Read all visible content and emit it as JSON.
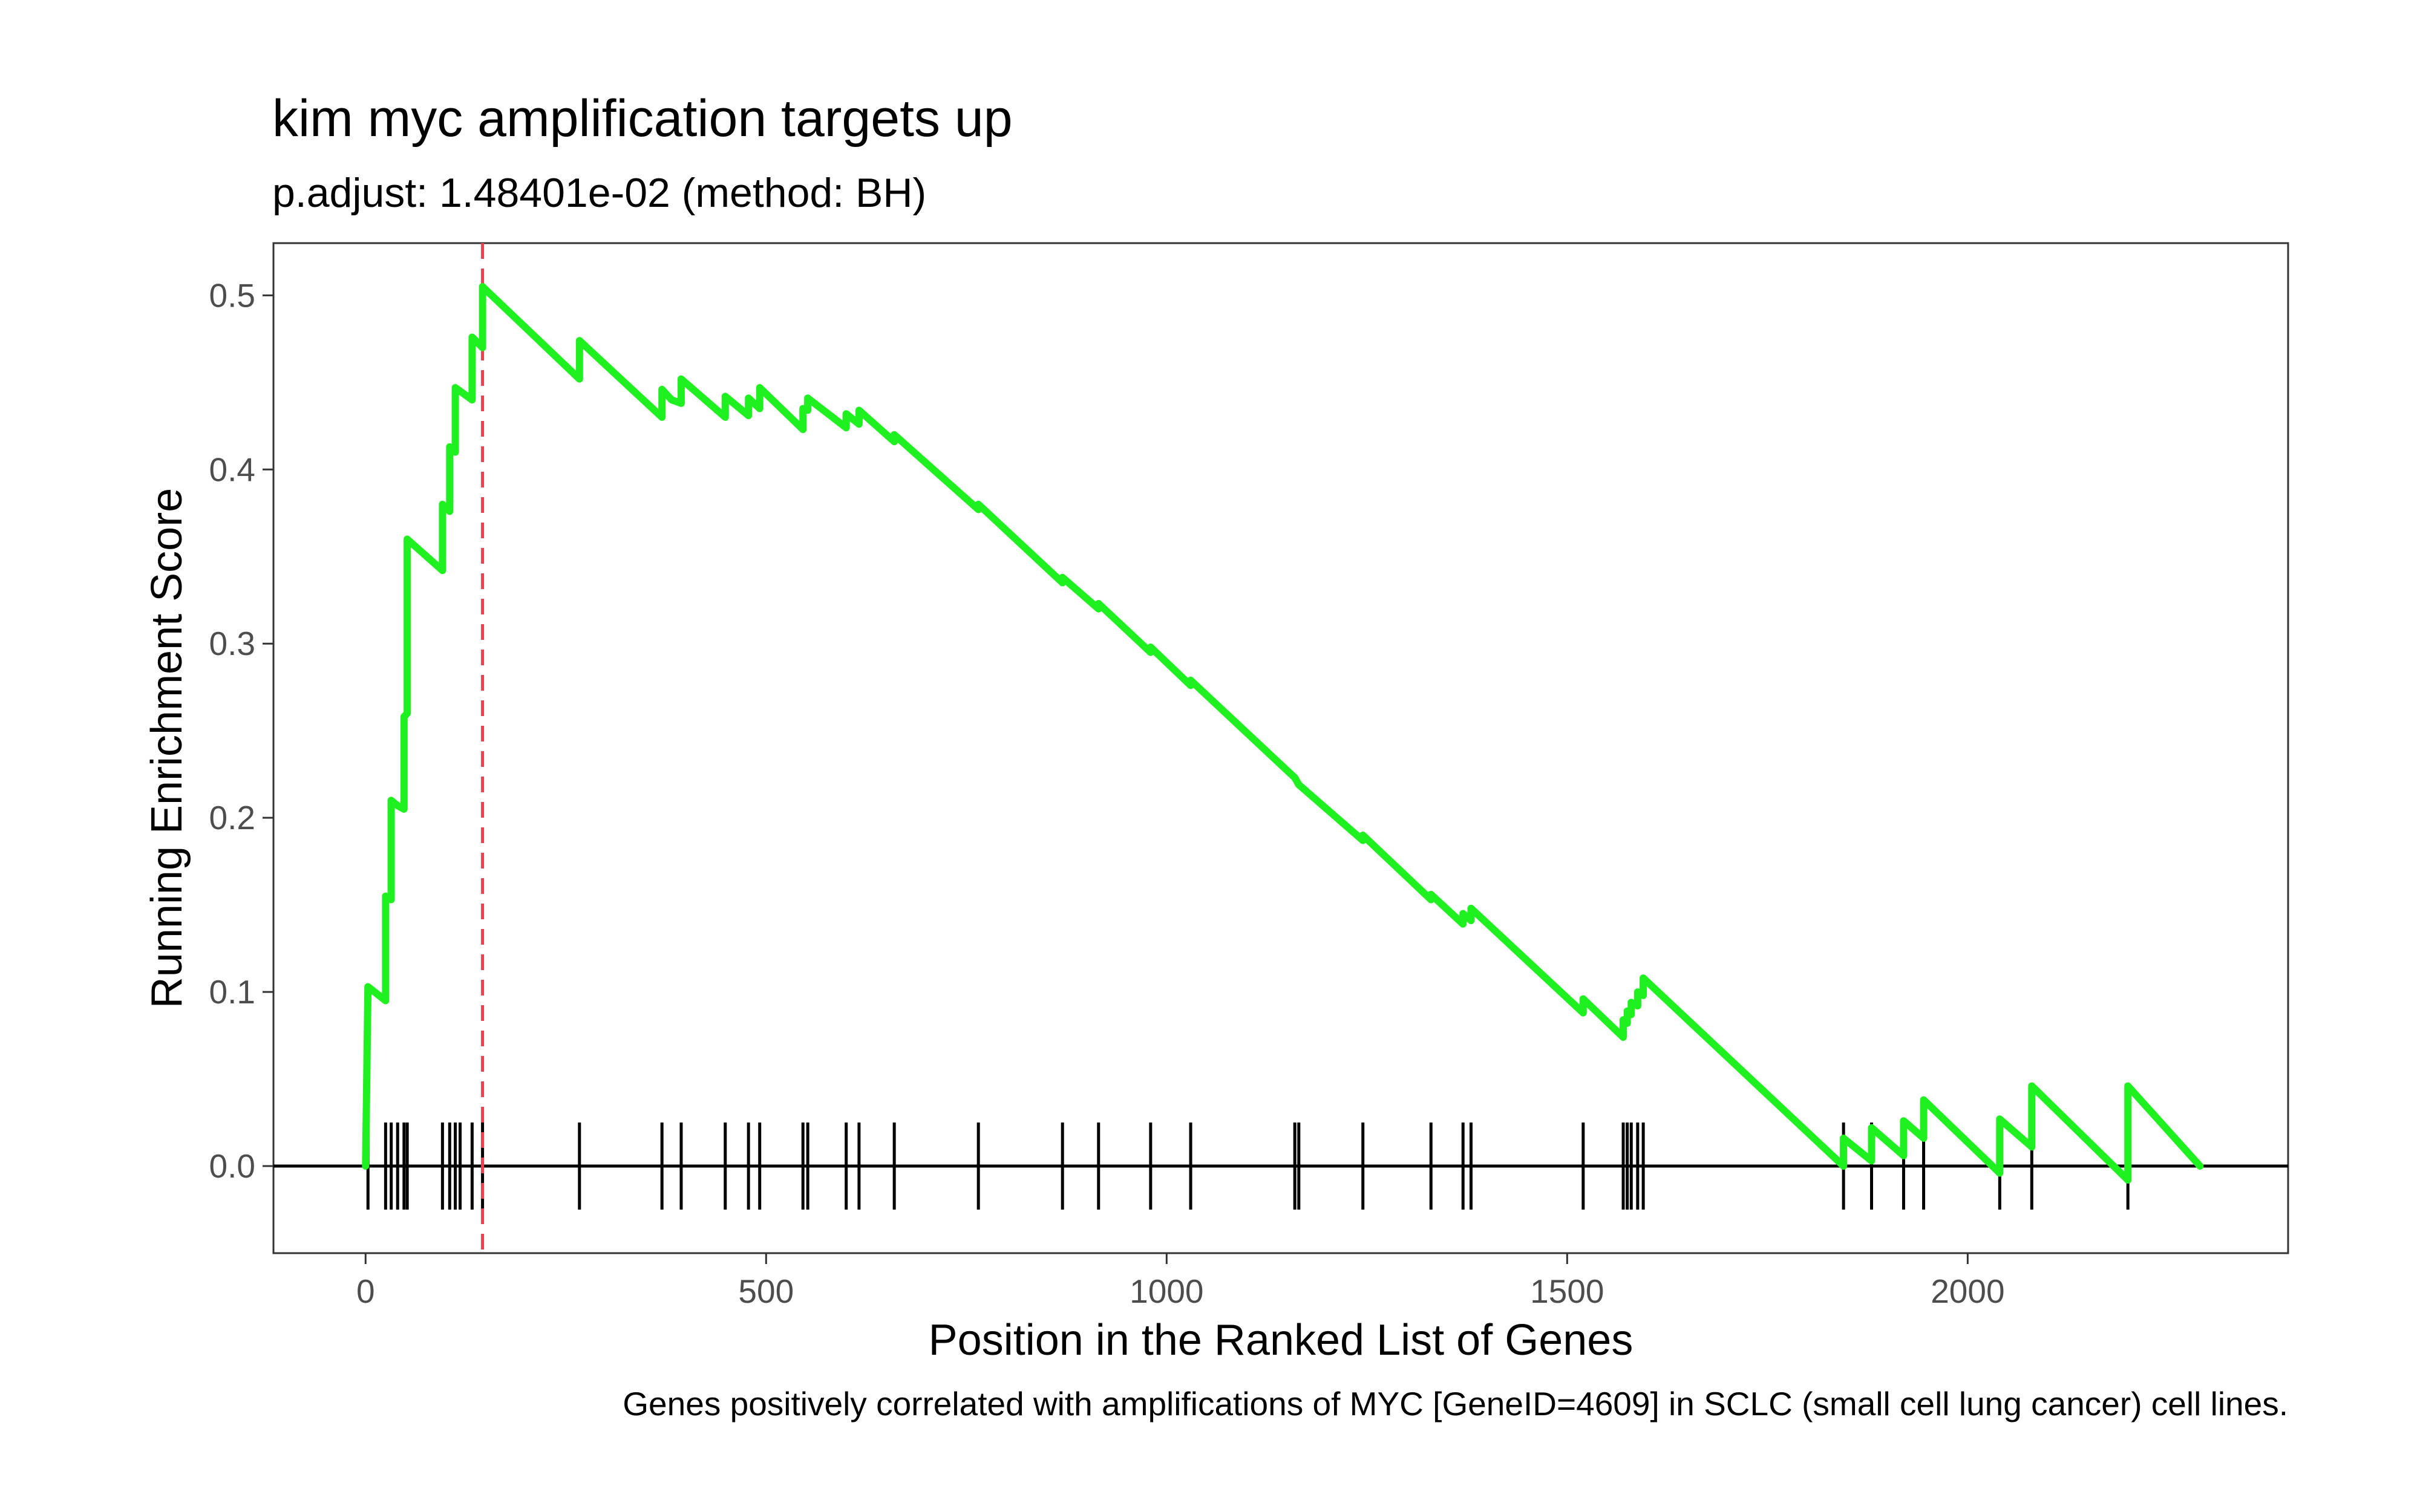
{
  "chart_data": {
    "type": "line",
    "title": "kim myc amplification targets up",
    "subtitle": "p.adjust: 1.48401e-02 (method: BH)",
    "xlabel": "Position in the Ranked List of Genes",
    "ylabel": "Running Enrichment Score",
    "caption": "Genes positively correlated with amplifications of MYC [GeneID=4609] in SCLC (small cell lung cancer) cell lines.",
    "xlim": [
      -115,
      2400
    ],
    "ylim": [
      -0.05,
      0.53
    ],
    "x_ticks": [
      0,
      500,
      1000,
      1500,
      2000
    ],
    "y_ticks": [
      0.0,
      0.1,
      0.2,
      0.3,
      0.4,
      0.5
    ],
    "x_tick_labels": [
      "0",
      "500",
      "1000",
      "1500",
      "2000"
    ],
    "y_tick_labels": [
      "0.0",
      "0.1",
      "0.2",
      "0.3",
      "0.4",
      "0.5"
    ],
    "max_position": 2290,
    "peak_position": 146,
    "line_color": "#1ff01f",
    "peak_line_color": "#e8434f",
    "grid": false,
    "hit_positions": [
      3,
      25,
      32,
      40,
      48,
      52,
      96,
      105,
      112,
      118,
      133,
      146,
      267,
      370,
      394,
      449,
      478,
      492,
      546,
      552,
      600,
      616,
      660,
      765,
      870,
      915,
      980,
      1030,
      1160,
      1165,
      1245,
      1330,
      1370,
      1380,
      1520,
      1570,
      1575,
      1580,
      1588,
      1595,
      1845,
      1880,
      1920,
      1945,
      2040,
      2080,
      2200
    ],
    "series": [
      {
        "values": [
          [
            0,
            0.0
          ],
          [
            3,
            0.103
          ],
          [
            25,
            0.095
          ],
          [
            25,
            0.155
          ],
          [
            32,
            0.153
          ],
          [
            32,
            0.21
          ],
          [
            40,
            0.207
          ],
          [
            48,
            0.205
          ],
          [
            48,
            0.258
          ],
          [
            52,
            0.26
          ],
          [
            52,
            0.36
          ],
          [
            96,
            0.342
          ],
          [
            96,
            0.38
          ],
          [
            105,
            0.376
          ],
          [
            105,
            0.413
          ],
          [
            112,
            0.41
          ],
          [
            112,
            0.447
          ],
          [
            118,
            0.445
          ],
          [
            133,
            0.44
          ],
          [
            133,
            0.476
          ],
          [
            146,
            0.47
          ],
          [
            146,
            0.505
          ],
          [
            267,
            0.452
          ],
          [
            267,
            0.474
          ],
          [
            370,
            0.43
          ],
          [
            370,
            0.446
          ],
          [
            382,
            0.44
          ],
          [
            394,
            0.438
          ],
          [
            394,
            0.452
          ],
          [
            449,
            0.43
          ],
          [
            449,
            0.442
          ],
          [
            478,
            0.431
          ],
          [
            478,
            0.441
          ],
          [
            492,
            0.435
          ],
          [
            492,
            0.447
          ],
          [
            546,
            0.423
          ],
          [
            546,
            0.435
          ],
          [
            552,
            0.434
          ],
          [
            552,
            0.441
          ],
          [
            600,
            0.424
          ],
          [
            600,
            0.432
          ],
          [
            616,
            0.426
          ],
          [
            616,
            0.434
          ],
          [
            660,
            0.416
          ],
          [
            660,
            0.42
          ],
          [
            765,
            0.377
          ],
          [
            765,
            0.38
          ],
          [
            870,
            0.335
          ],
          [
            870,
            0.338
          ],
          [
            915,
            0.32
          ],
          [
            915,
            0.323
          ],
          [
            980,
            0.295
          ],
          [
            980,
            0.298
          ],
          [
            1030,
            0.276
          ],
          [
            1030,
            0.279
          ],
          [
            1160,
            0.223
          ],
          [
            1165,
            0.219
          ],
          [
            1245,
            0.187
          ],
          [
            1245,
            0.19
          ],
          [
            1330,
            0.153
          ],
          [
            1330,
            0.156
          ],
          [
            1370,
            0.139
          ],
          [
            1370,
            0.145
          ],
          [
            1380,
            0.141
          ],
          [
            1380,
            0.148
          ],
          [
            1520,
            0.088
          ],
          [
            1520,
            0.096
          ],
          [
            1570,
            0.074
          ],
          [
            1570,
            0.084
          ],
          [
            1575,
            0.082
          ],
          [
            1575,
            0.089
          ],
          [
            1580,
            0.087
          ],
          [
            1580,
            0.094
          ],
          [
            1588,
            0.092
          ],
          [
            1588,
            0.1
          ],
          [
            1595,
            0.098
          ],
          [
            1595,
            0.108
          ],
          [
            1845,
            0.0
          ],
          [
            1845,
            0.016
          ],
          [
            1880,
            0.003
          ],
          [
            1880,
            0.022
          ],
          [
            1920,
            0.006
          ],
          [
            1920,
            0.026
          ],
          [
            1945,
            0.016
          ],
          [
            1945,
            0.038
          ],
          [
            2040,
            -0.004
          ],
          [
            2040,
            0.027
          ],
          [
            2080,
            0.011
          ],
          [
            2080,
            0.046
          ],
          [
            2200,
            -0.008
          ],
          [
            2200,
            0.046
          ],
          [
            2290,
            0.0
          ]
        ]
      }
    ]
  }
}
